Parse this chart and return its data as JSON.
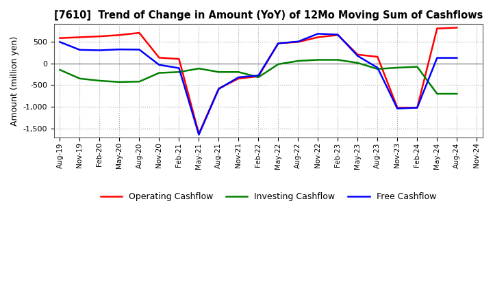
{
  "title": "[7610]  Trend of Change in Amount (YoY) of 12Mo Moving Sum of Cashflows",
  "ylabel": "Amount (million yen)",
  "x_labels": [
    "Aug-19",
    "Nov-19",
    "Feb-20",
    "May-20",
    "Aug-20",
    "Nov-20",
    "Feb-21",
    "May-21",
    "Aug-21",
    "Nov-21",
    "Feb-22",
    "May-22",
    "Aug-22",
    "Nov-22",
    "Feb-23",
    "May-23",
    "Aug-23",
    "Nov-23",
    "Feb-24",
    "May-24",
    "Aug-24",
    "Nov-24"
  ],
  "operating": [
    580,
    600,
    620,
    650,
    700,
    130,
    100,
    -1620,
    -580,
    -350,
    -300,
    460,
    490,
    600,
    650,
    200,
    150,
    -1020,
    -1020,
    800,
    820,
    null
  ],
  "investing": [
    -150,
    -350,
    -400,
    -430,
    -420,
    -220,
    -200,
    -120,
    -200,
    -200,
    -320,
    -20,
    55,
    80,
    80,
    10,
    -130,
    -100,
    -80,
    -700,
    -700,
    null
  ],
  "free": [
    490,
    310,
    300,
    320,
    315,
    -35,
    -110,
    -1640,
    -590,
    -320,
    -280,
    460,
    500,
    680,
    660,
    170,
    -100,
    -1040,
    -1020,
    125,
    125,
    null
  ],
  "operating_color": "#ff0000",
  "investing_color": "#008000",
  "free_color": "#0000ff",
  "ylim": [
    -1700,
    900
  ],
  "yticks": [
    -1500,
    -1000,
    -500,
    0,
    500
  ],
  "background_color": "#ffffff",
  "grid_color": "#aaaaaa"
}
